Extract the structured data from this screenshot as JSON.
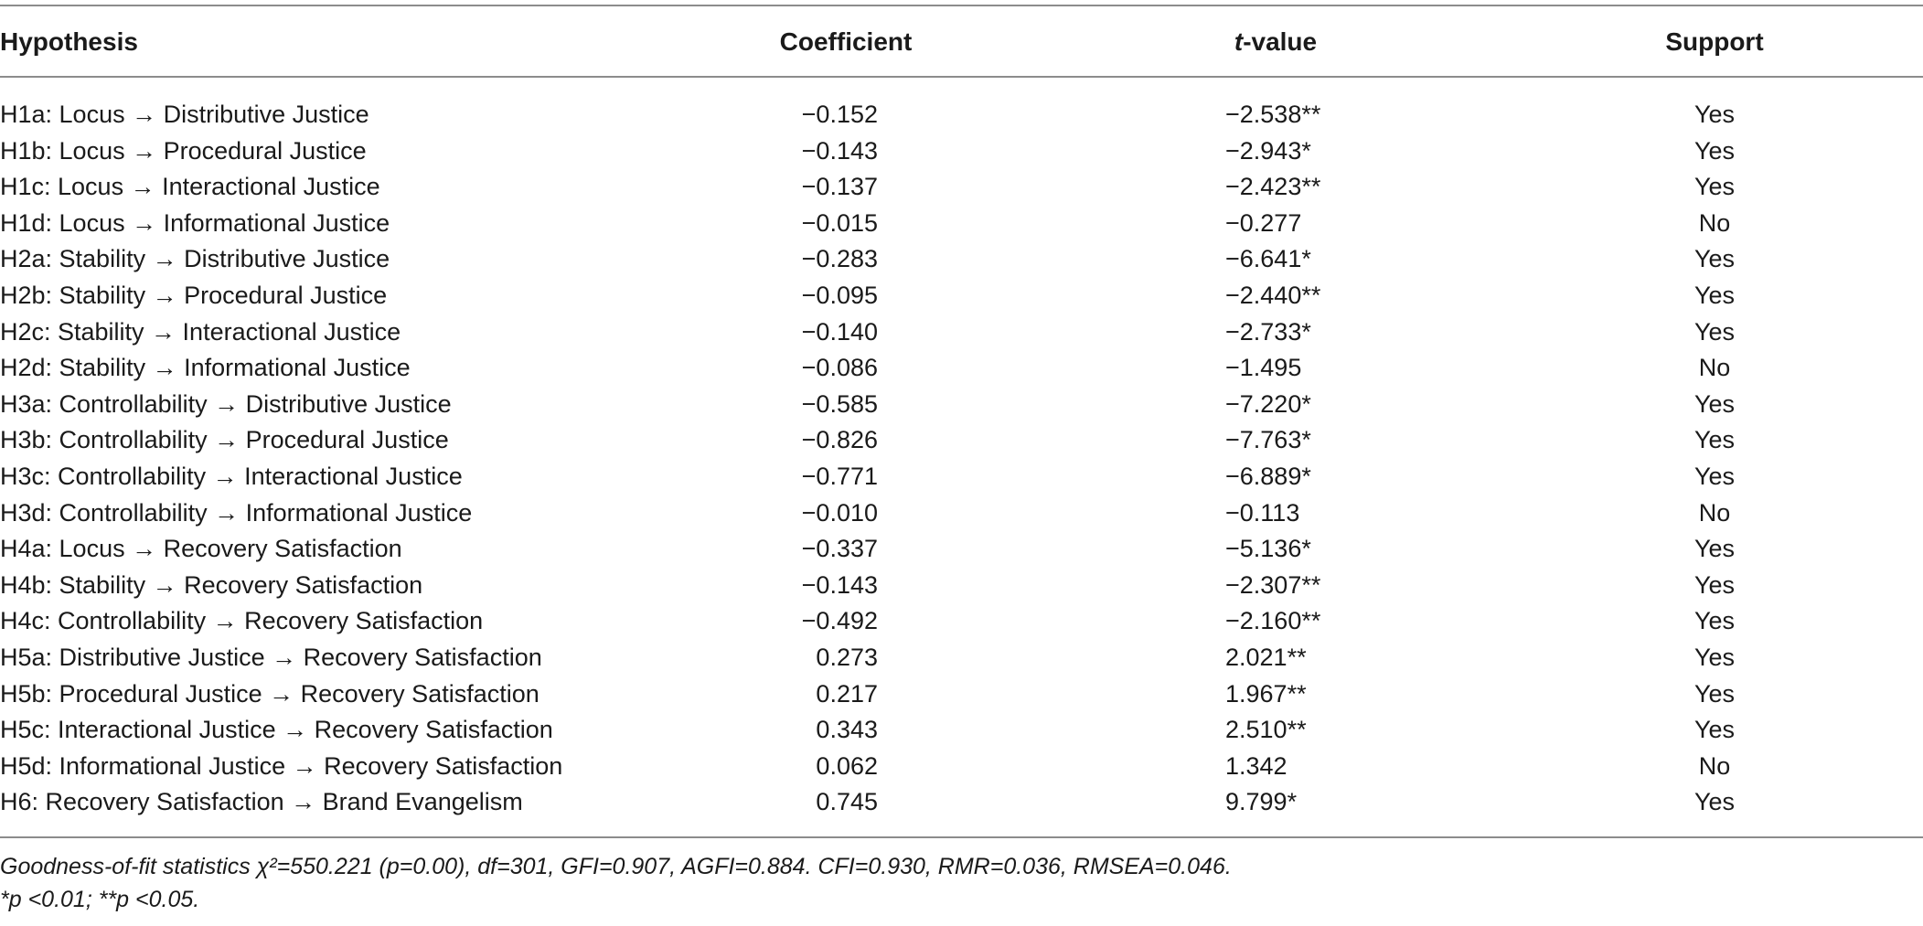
{
  "table": {
    "headers": {
      "hypothesis": "Hypothesis",
      "coefficient": "Coefficient",
      "t_value_italic": "t",
      "t_value_rest": "-value",
      "support": "Support"
    },
    "rows": [
      {
        "hypothesis": "H1a: Locus → Distributive Justice",
        "coefficient": "−0.152",
        "t_value": "−2.538**",
        "support": "Yes"
      },
      {
        "hypothesis": "H1b: Locus → Procedural Justice",
        "coefficient": "−0.143",
        "t_value": "−2.943*",
        "support": "Yes"
      },
      {
        "hypothesis": "H1c: Locus → Interactional Justice",
        "coefficient": "−0.137",
        "t_value": "−2.423**",
        "support": "Yes"
      },
      {
        "hypothesis": "H1d: Locus → Informational Justice",
        "coefficient": "−0.015",
        "t_value": "−0.277",
        "support": "No"
      },
      {
        "hypothesis": "H2a: Stability → Distributive Justice",
        "coefficient": "−0.283",
        "t_value": "−6.641*",
        "support": "Yes"
      },
      {
        "hypothesis": "H2b: Stability → Procedural Justice",
        "coefficient": "−0.095",
        "t_value": "−2.440**",
        "support": "Yes"
      },
      {
        "hypothesis": "H2c: Stability → Interactional Justice",
        "coefficient": "−0.140",
        "t_value": "−2.733*",
        "support": "Yes"
      },
      {
        "hypothesis": "H2d: Stability → Informational Justice",
        "coefficient": "−0.086",
        "t_value": "−1.495",
        "support": "No"
      },
      {
        "hypothesis": "H3a: Controllability → Distributive Justice",
        "coefficient": "−0.585",
        "t_value": "−7.220*",
        "support": "Yes"
      },
      {
        "hypothesis": "H3b: Controllability → Procedural Justice",
        "coefficient": "−0.826",
        "t_value": "−7.763*",
        "support": "Yes"
      },
      {
        "hypothesis": "H3c: Controllability → Interactional Justice",
        "coefficient": "−0.771",
        "t_value": "−6.889*",
        "support": "Yes"
      },
      {
        "hypothesis": "H3d: Controllability → Informational Justice",
        "coefficient": "−0.010",
        "t_value": "−0.113",
        "support": "No"
      },
      {
        "hypothesis": "H4a: Locus → Recovery Satisfaction",
        "coefficient": "−0.337",
        "t_value": "−5.136*",
        "support": "Yes"
      },
      {
        "hypothesis": "H4b: Stability → Recovery Satisfaction",
        "coefficient": "−0.143",
        "t_value": "−2.307**",
        "support": "Yes"
      },
      {
        "hypothesis": "H4c: Controllability → Recovery Satisfaction",
        "coefficient": "−0.492",
        "t_value": "−2.160**",
        "support": "Yes"
      },
      {
        "hypothesis": "H5a: Distributive Justice → Recovery Satisfaction",
        "coefficient": "0.273",
        "t_value": "2.021**",
        "support": "Yes"
      },
      {
        "hypothesis": "H5b: Procedural Justice → Recovery Satisfaction",
        "coefficient": "0.217",
        "t_value": "1.967**",
        "support": "Yes"
      },
      {
        "hypothesis": "H5c: Interactional Justice → Recovery Satisfaction",
        "coefficient": "0.343",
        "t_value": "2.510**",
        "support": "Yes"
      },
      {
        "hypothesis": "H5d: Informational Justice → Recovery Satisfaction",
        "coefficient": "0.062",
        "t_value": "1.342",
        "support": "No"
      },
      {
        "hypothesis": "H6: Recovery Satisfaction → Brand Evangelism",
        "coefficient": "0.745",
        "t_value": "9.799*",
        "support": "Yes"
      }
    ]
  },
  "footnotes": {
    "fit_statistics": "Goodness-of-fit statistics χ²=550.221 (p=0.00), df=301, GFI=0.907, AGFI=0.884. CFI=0.930, RMR=0.036, RMSEA=0.046.",
    "significance": "*p <0.01;  **p <0.05."
  }
}
